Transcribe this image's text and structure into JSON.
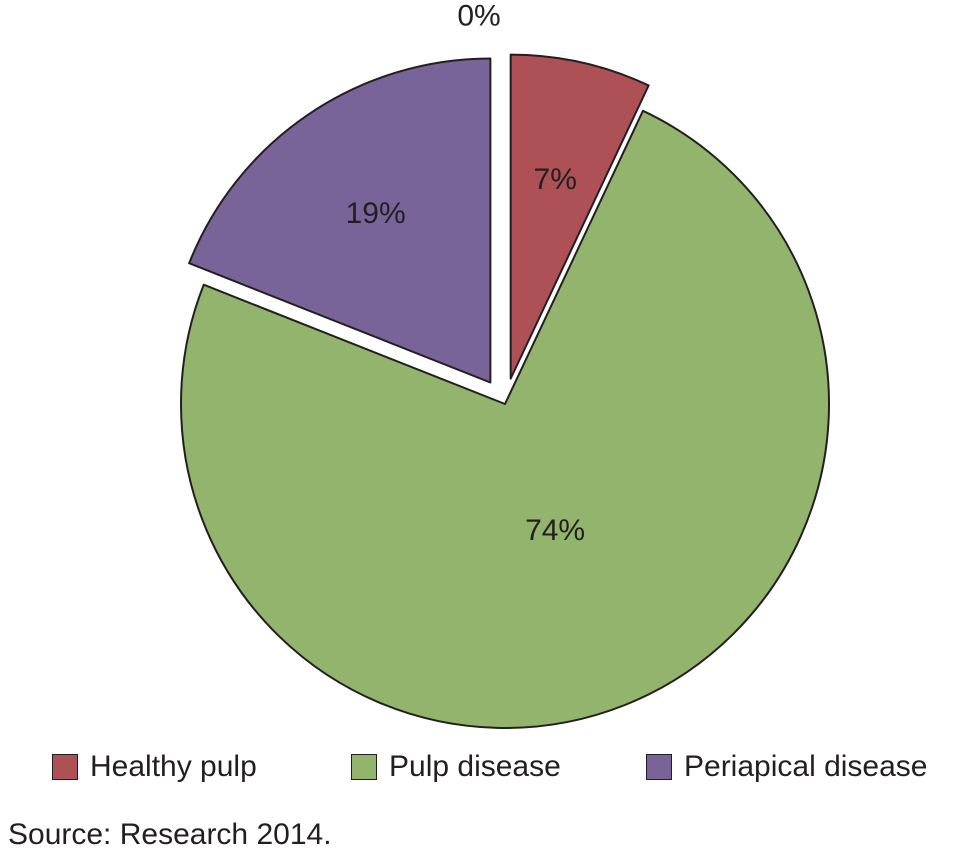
{
  "chart_data": {
    "type": "pie",
    "slices": [
      {
        "label": "Healthy pulp",
        "value": 7,
        "display": "7%",
        "color": "#ad5157",
        "exploded": true
      },
      {
        "label": "Pulp disease",
        "value": 74,
        "display": "74%",
        "color": "#93b46c",
        "exploded": false
      },
      {
        "label": "Periapical disease",
        "value": 19,
        "display": "19%",
        "color": "#786499",
        "exploded": true
      }
    ],
    "extra_label": "0%",
    "legend_placement": "bottom"
  },
  "legend": {
    "items": [
      {
        "label": "Healthy pulp",
        "color": "#ad5157"
      },
      {
        "label": "Pulp disease",
        "color": "#93b46c"
      },
      {
        "label": "Periapical disease",
        "color": "#786499"
      }
    ]
  },
  "source": "Source: Research 2014."
}
